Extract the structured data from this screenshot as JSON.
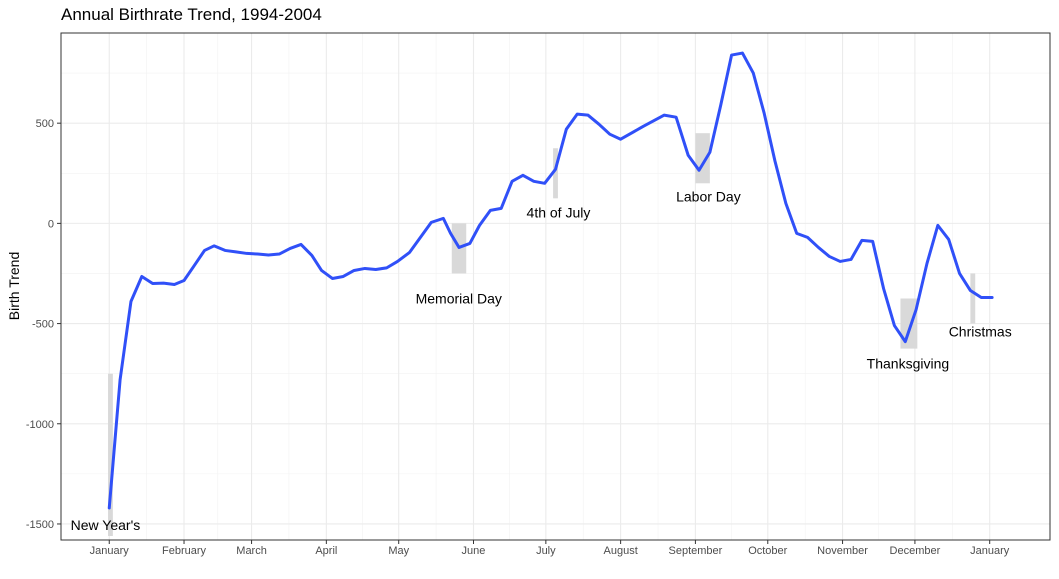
{
  "chart_data": {
    "type": "line",
    "title": "Annual Birthrate Trend, 1994-2004",
    "xlabel": "",
    "ylabel": "Birth Trend",
    "xlim": [
      -20,
      390
    ],
    "ylim": [
      -1580,
      950
    ],
    "x_ticks": [
      {
        "label": "January",
        "x": 0
      },
      {
        "label": "February",
        "x": 31
      },
      {
        "label": "March",
        "x": 59
      },
      {
        "label": "April",
        "x": 90
      },
      {
        "label": "May",
        "x": 120
      },
      {
        "label": "June",
        "x": 151
      },
      {
        "label": "July",
        "x": 181
      },
      {
        "label": "August",
        "x": 212
      },
      {
        "label": "September",
        "x": 243
      },
      {
        "label": "October",
        "x": 273
      },
      {
        "label": "November",
        "x": 304
      },
      {
        "label": "December",
        "x": 334
      },
      {
        "label": "January",
        "x": 365
      }
    ],
    "y_ticks": [
      -1500,
      -1000,
      -500,
      0,
      500
    ],
    "grid": true,
    "color": "#3050f8",
    "series": [
      {
        "x": [
          0,
          4.5,
          9,
          13.5,
          18,
          22.5,
          27,
          31,
          35,
          39.5,
          43.5,
          48,
          52.5,
          57,
          61.5,
          66,
          70.5,
          75,
          79.5,
          84,
          88,
          92.5,
          97,
          101.5,
          106,
          110.5,
          115,
          119.5,
          124.5,
          129,
          133.5,
          138.5,
          141.5,
          145,
          149.5,
          153.5,
          158,
          162.5,
          167,
          171.5,
          176,
          180.5,
          185,
          189.5,
          194,
          198.5,
          203,
          207.5,
          212,
          221.5,
          230,
          235,
          240,
          244.5,
          249,
          253.5,
          258,
          262.5,
          267,
          271.5,
          276,
          280.5,
          285,
          289.5,
          294,
          298.5,
          303,
          307.5,
          312,
          316.5,
          321,
          325.5,
          330,
          334.5,
          339,
          343.5,
          348,
          352.5,
          357,
          361.5,
          366
        ],
        "y": [
          -1420,
          -780,
          -390,
          -265,
          -300,
          -298,
          -305,
          -285,
          -215,
          -135,
          -112,
          -135,
          -142,
          -150,
          -153,
          -158,
          -153,
          -125,
          -105,
          -160,
          -235,
          -275,
          -265,
          -235,
          -225,
          -230,
          -222,
          -190,
          -145,
          -70,
          5,
          25,
          -50,
          -120,
          -100,
          -10,
          65,
          75,
          210,
          240,
          210,
          200,
          270,
          470,
          545,
          540,
          495,
          445,
          420,
          485,
          540,
          530,
          340,
          265,
          355,
          590,
          840,
          850,
          750,
          550,
          310,
          100,
          -50,
          -70,
          -120,
          -165,
          -190,
          -180,
          -85,
          -90,
          -325,
          -510,
          -590,
          -430,
          -200,
          -10,
          -80,
          -250,
          -335,
          -370,
          -370
        ]
      }
    ],
    "annotations": [
      {
        "label": "New Year's",
        "x": 0,
        "bar_x": [
          -0.5,
          1.5
        ],
        "bar_y": [
          -1560,
          -750
        ],
        "label_x": -16,
        "label_y": -1530
      },
      {
        "label": "Memorial Day",
        "x": 145,
        "bar_x": [
          142,
          148
        ],
        "bar_y": [
          -250,
          0
        ],
        "label_x": 127,
        "label_y": -400
      },
      {
        "label": "4th of July",
        "x": 185,
        "bar_x": [
          184,
          186
        ],
        "bar_y": [
          125,
          375
        ],
        "label_x": 173,
        "label_y": 30
      },
      {
        "label": "Labor Day",
        "x": 246,
        "bar_x": [
          243,
          249
        ],
        "bar_y": [
          200,
          450
        ],
        "label_x": 235,
        "label_y": 110
      },
      {
        "label": "Thanksgiving",
        "x": 331,
        "bar_x": [
          328,
          335
        ],
        "bar_y": [
          -625,
          -375
        ],
        "label_x": 314,
        "label_y": -725
      },
      {
        "label": "Christmas",
        "x": 358,
        "bar_x": [
          357,
          359
        ],
        "bar_y": [
          -500,
          -250
        ],
        "label_x": 348,
        "label_y": -565
      }
    ]
  }
}
